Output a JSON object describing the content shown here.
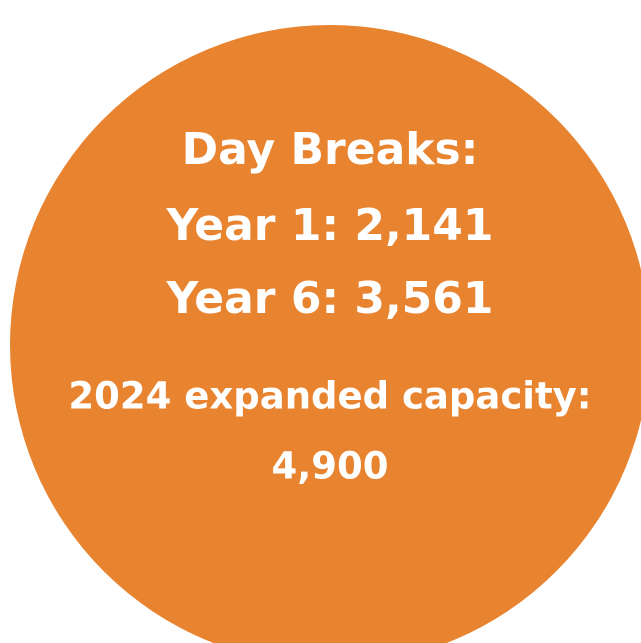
{
  "heading": "Day Breaks:",
  "lines": [
    "Year 1: 2,141",
    "Year 6: 3,561"
  ],
  "capacity": {
    "label": "2024 expanded capacity:",
    "value": "4,900"
  }
}
